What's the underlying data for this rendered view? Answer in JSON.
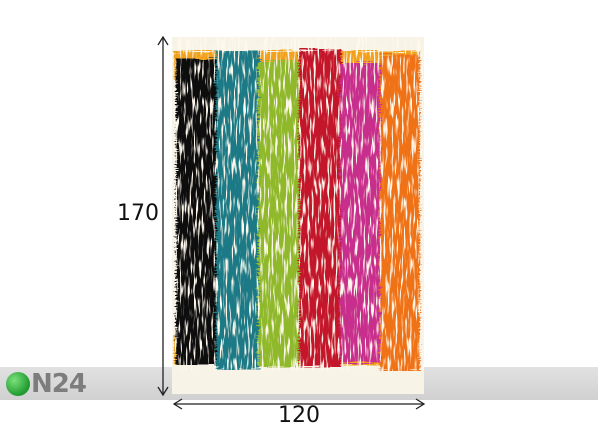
{
  "product": {
    "height_label": "170",
    "width_label": "120"
  },
  "watermark": {
    "logo_text": "N24",
    "logo_icon": "green-circle-icon"
  },
  "rug": {
    "stripe_colors": [
      "#0a0a0a",
      "#1f7a86",
      "#8fb82c",
      "#c3122a",
      "#c82d8c",
      "#f07213"
    ],
    "background": "#f7f3e6",
    "edge_color": "#f1a11b"
  }
}
